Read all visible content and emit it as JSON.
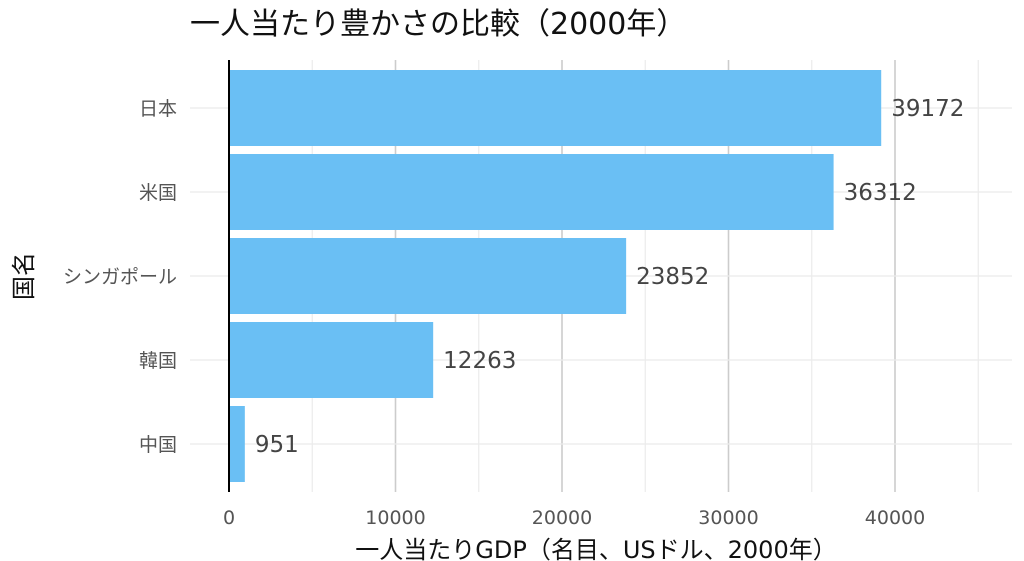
{
  "chart_data": {
    "type": "bar",
    "orientation": "horizontal",
    "title": "一人当たり豊かさの比較（2000年）",
    "xlabel": "一人当たりGDP（名目、USドル、2000年）",
    "ylabel": "国名",
    "categories": [
      "日本",
      "米国",
      "シンガポール",
      "韓国",
      "中国"
    ],
    "values": [
      39172,
      36312,
      23852,
      12263,
      951
    ],
    "data_labels": [
      "39172",
      "36312",
      "23852",
      "12263",
      "951"
    ],
    "xlim": [
      0,
      45000
    ],
    "x_ticks": [
      0,
      10000,
      20000,
      30000,
      40000
    ],
    "x_tick_labels": [
      "0",
      "10000",
      "20000",
      "30000",
      "40000"
    ],
    "bar_color": "#6abff4",
    "grid": true,
    "legend": "none"
  }
}
